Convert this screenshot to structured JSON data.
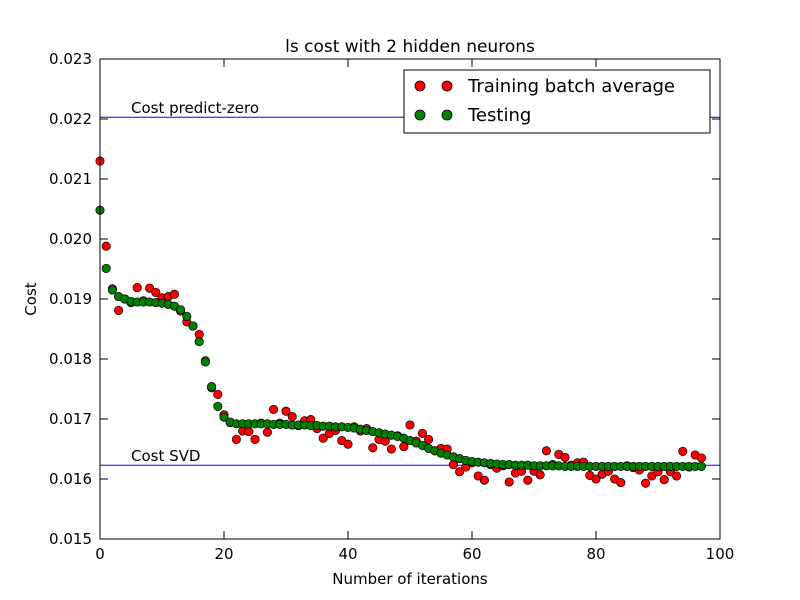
{
  "chart_data": {
    "type": "scatter",
    "title": "ls cost with 2 hidden neurons",
    "xlabel": "Number of iterations",
    "ylabel": "Cost",
    "xlim": [
      0,
      100
    ],
    "ylim": [
      0.015,
      0.023
    ],
    "x_ticks": [
      0,
      20,
      40,
      60,
      80,
      100
    ],
    "y_ticks": [
      0.015,
      0.016,
      0.017,
      0.018,
      0.019,
      0.02,
      0.021,
      0.022,
      0.023
    ],
    "x_tick_labels": [
      "0",
      "20",
      "40",
      "60",
      "80",
      "100"
    ],
    "y_tick_labels": [
      "0.015",
      "0.016",
      "0.017",
      "0.018",
      "0.019",
      "0.020",
      "0.021",
      "0.022",
      "0.023"
    ],
    "legend_position": "top-right",
    "series": [
      {
        "name": "Training batch average",
        "color": "#ff0000",
        "values": [
          0.0213,
          0.01988,
          0.01917,
          0.01881,
          0.019,
          0.01894,
          0.01919,
          0.01897,
          0.01918,
          0.01911,
          0.01902,
          0.01904,
          0.01908,
          0.0188,
          0.01862,
          0.01855,
          0.01841,
          0.01797,
          0.01752,
          0.01741,
          0.01707,
          0.01694,
          0.01666,
          0.0168,
          0.01679,
          0.01666,
          0.01693,
          0.01678,
          0.01716,
          0.01693,
          0.01713,
          0.01704,
          0.01689,
          0.01697,
          0.01699,
          0.01684,
          0.01668,
          0.01676,
          0.01681,
          0.01664,
          0.01658,
          0.01687,
          0.0168,
          0.01684,
          0.01652,
          0.01666,
          0.01663,
          0.0165,
          0.01672,
          0.01654,
          0.0169,
          0.01663,
          0.01676,
          0.01666,
          0.01647,
          0.01651,
          0.0165,
          0.01624,
          0.01612,
          0.0162,
          0.01627,
          0.01605,
          0.01598,
          0.01624,
          0.01618,
          0.01622,
          0.01595,
          0.0161,
          0.01613,
          0.01598,
          0.01613,
          0.01607,
          0.01647,
          0.01624,
          0.01641,
          0.01636,
          0.01623,
          0.01627,
          0.01628,
          0.01606,
          0.016,
          0.01608,
          0.01613,
          0.016,
          0.01594,
          0.01622,
          0.01619,
          0.01615,
          0.01593,
          0.01605,
          0.01612,
          0.01599,
          0.01612,
          0.01605,
          0.01646,
          0.0162,
          0.0164,
          0.01635
        ]
      },
      {
        "name": "Testing",
        "color": "#008000",
        "values": [
          0.02048,
          0.01951,
          0.01915,
          0.01904,
          0.019,
          0.01896,
          0.01895,
          0.01895,
          0.01895,
          0.01894,
          0.01893,
          0.01891,
          0.01888,
          0.01882,
          0.01871,
          0.01855,
          0.01829,
          0.01795,
          0.01754,
          0.01721,
          0.01703,
          0.01695,
          0.01692,
          0.01692,
          0.01692,
          0.01692,
          0.01692,
          0.01692,
          0.01691,
          0.01691,
          0.01691,
          0.0169,
          0.0169,
          0.0169,
          0.01689,
          0.01689,
          0.01688,
          0.01688,
          0.01687,
          0.01687,
          0.01686,
          0.01685,
          0.01683,
          0.01681,
          0.01679,
          0.01677,
          0.01675,
          0.01673,
          0.01671,
          0.01668,
          0.01664,
          0.0166,
          0.01656,
          0.01651,
          0.01647,
          0.01643,
          0.0164,
          0.01637,
          0.01634,
          0.01631,
          0.01629,
          0.01628,
          0.01627,
          0.01626,
          0.01625,
          0.01624,
          0.01624,
          0.01623,
          0.01623,
          0.01623,
          0.01622,
          0.01622,
          0.01622,
          0.01622,
          0.01622,
          0.01621,
          0.01621,
          0.01621,
          0.01621,
          0.01621,
          0.01621,
          0.01621,
          0.01621,
          0.01621,
          0.01621,
          0.01621,
          0.01621,
          0.01621,
          0.01621,
          0.01621,
          0.01621,
          0.01621,
          0.01621,
          0.01621,
          0.01621,
          0.01621,
          0.01621,
          0.01621
        ]
      }
    ],
    "reference_lines": [
      {
        "label": "Cost predict-zero",
        "value": 0.02203,
        "color": "#0000ff"
      },
      {
        "label": "Cost SVD",
        "value": 0.01623,
        "color": "#0000ff"
      }
    ]
  }
}
